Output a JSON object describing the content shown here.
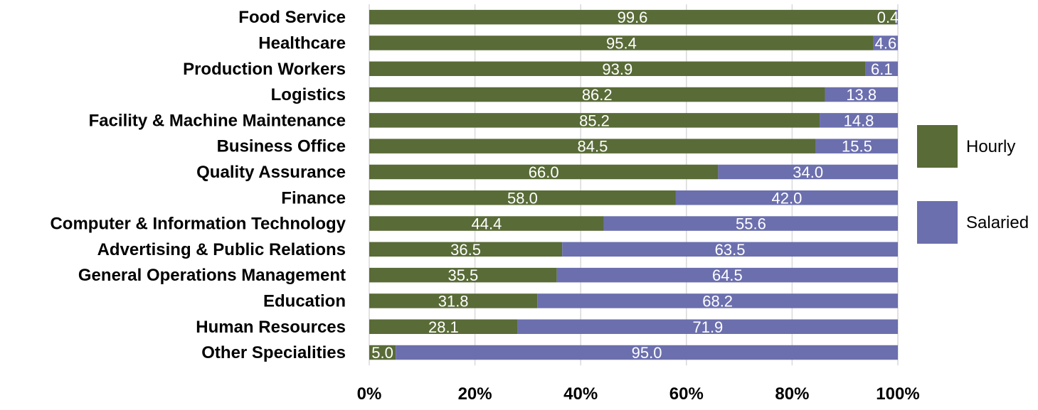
{
  "chart_data": {
    "type": "bar",
    "orientation": "horizontal",
    "stacked": "percent",
    "categories": [
      "Food Service",
      "Healthcare",
      "Production Workers",
      "Logistics",
      "Facility & Machine Maintenance",
      "Business Office",
      "Quality Assurance",
      "Finance",
      "Computer & Information Technology",
      "Advertising & Public Relations",
      "General Operations Management",
      "Education",
      "Human Resources",
      "Other Specialities"
    ],
    "series": [
      {
        "name": "Hourly",
        "color": "#596b37",
        "values": [
          99.6,
          95.4,
          93.9,
          86.2,
          85.2,
          84.5,
          66.0,
          58.0,
          44.4,
          36.5,
          35.5,
          31.8,
          28.1,
          5.0
        ],
        "labels": [
          "99.6",
          "95.4",
          "93.9",
          "86.2",
          "85.2",
          "84.5",
          "66.0",
          "58.0",
          "44.4",
          "36.5",
          "35.5",
          "31.8",
          "28.1",
          "5.0"
        ]
      },
      {
        "name": "Salaried",
        "color": "#6b6fae",
        "values": [
          0.4,
          4.6,
          6.1,
          13.8,
          14.8,
          15.5,
          34.0,
          42.0,
          55.6,
          63.5,
          64.5,
          68.2,
          71.9,
          95.0
        ],
        "labels": [
          "0.4",
          "4.6",
          "6.1",
          "13.8",
          "14.8",
          "15.5",
          "34.0",
          "42.0",
          "55.6",
          "63.5",
          "64.5",
          "68.2",
          "71.9",
          "95.0"
        ]
      }
    ],
    "xlim": [
      0,
      100
    ],
    "x_ticks": [
      "0%",
      "20%",
      "40%",
      "60%",
      "80%",
      "100%"
    ],
    "title": "",
    "xlabel": "",
    "ylabel": "",
    "grid": "vertical",
    "legend": "right",
    "gridline_color": "#d9d9d9"
  }
}
